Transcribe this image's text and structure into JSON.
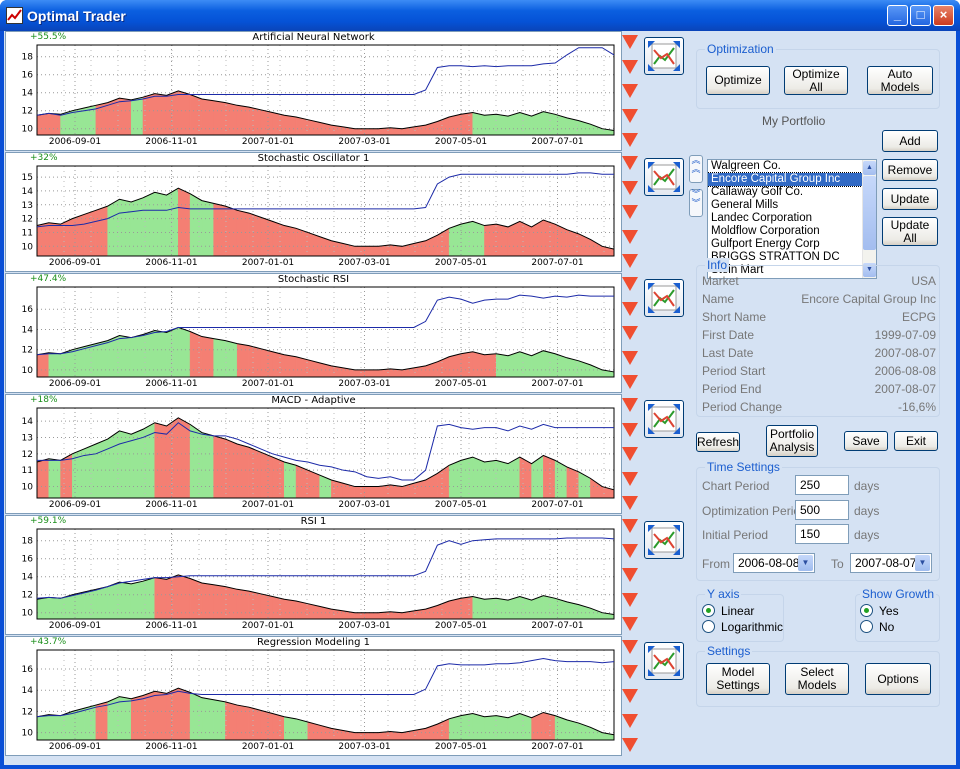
{
  "title": "Optimal Trader",
  "window_buttons": {
    "minimize": "_",
    "maximize": "□",
    "close": "×"
  },
  "colors": {
    "up": "#98e695",
    "down": "#f47f73",
    "line": "#000000",
    "model": "#1c2aa8",
    "grid": "#999999",
    "accent": "#1b5ecf"
  },
  "x_ticks": [
    "2006-09-01",
    "2006-11-01",
    "2007-01-01",
    "2007-03-01",
    "2007-05-01",
    "2007-07-01"
  ],
  "charts": [
    {
      "name": "Artificial Neural Network",
      "growth": "+55.5%",
      "yticks": [
        10,
        12,
        14,
        16,
        18
      ],
      "ylim": [
        9.3,
        19.3
      ],
      "price": [
        11.5,
        11.7,
        11.6,
        12.0,
        12.3,
        12.6,
        12.9,
        13.4,
        13.2,
        13.5,
        13.9,
        13.7,
        14.2,
        13.8,
        13.3,
        13.1,
        12.9,
        12.6,
        12.4,
        12.1,
        11.8,
        11.5,
        11.3,
        11.0,
        10.7,
        10.4,
        10.2,
        10.0,
        10.0,
        10.0,
        10.1,
        10.0,
        10.2,
        10.4,
        10.8,
        11.3,
        11.6,
        11.8,
        11.5,
        11.6,
        11.4,
        11.8,
        11.4,
        11.9,
        11.6,
        11.2,
        10.9,
        10.5,
        10.0,
        9.8
      ],
      "model": [
        11.5,
        11.7,
        11.5,
        11.8,
        12.0,
        12.2,
        12.6,
        13.0,
        13.1,
        13.3,
        13.6,
        13.6,
        13.8,
        13.8,
        13.8,
        13.8,
        13.8,
        13.8,
        13.8,
        13.8,
        13.8,
        13.8,
        13.8,
        13.8,
        13.8,
        13.8,
        13.8,
        13.8,
        13.8,
        13.8,
        13.8,
        13.8,
        13.8,
        14.3,
        16.8,
        17.0,
        17.0,
        16.9,
        17.0,
        16.9,
        17.0,
        17.0,
        17.0,
        17.2,
        17.3,
        18.2,
        19.0,
        19.0,
        19.0,
        18.2
      ],
      "regime": "DDUUUDDDUDDDDDDDDDDDDDDDDDDDDDDDDDDDDUUUUUUUUUUUUU"
    },
    {
      "name": "Stochastic Oscillator 1",
      "growth": "+32%",
      "yticks": [
        10,
        11,
        12,
        13,
        14,
        15
      ],
      "ylim": [
        9.3,
        15.8
      ],
      "price": [
        11.5,
        11.7,
        11.6,
        12.0,
        12.3,
        12.6,
        12.9,
        13.4,
        13.2,
        13.5,
        13.9,
        13.7,
        14.2,
        13.8,
        13.3,
        13.1,
        12.9,
        12.6,
        12.4,
        12.1,
        11.8,
        11.5,
        11.3,
        11.0,
        10.7,
        10.4,
        10.2,
        10.0,
        10.0,
        10.0,
        10.1,
        10.0,
        10.2,
        10.4,
        10.8,
        11.3,
        11.6,
        11.8,
        11.5,
        11.6,
        11.4,
        11.8,
        11.4,
        11.9,
        11.6,
        11.2,
        10.9,
        10.5,
        10.0,
        9.8
      ],
      "model": [
        11.4,
        11.5,
        11.5,
        11.5,
        11.6,
        11.8,
        12.0,
        12.4,
        12.5,
        12.6,
        12.6,
        12.6,
        12.8,
        12.7,
        12.7,
        12.7,
        12.7,
        12.7,
        12.7,
        12.7,
        12.7,
        12.7,
        12.7,
        12.7,
        12.7,
        12.7,
        12.7,
        12.7,
        12.7,
        12.7,
        12.7,
        12.7,
        12.7,
        12.8,
        14.5,
        15.0,
        15.2,
        15.2,
        15.2,
        15.2,
        15.2,
        15.2,
        15.2,
        15.2,
        15.2,
        15.2,
        15.3,
        15.3,
        15.2,
        15.2
      ],
      "regime": "DDDDDDUUUUUUDUUDDDDDDDDDDDDDDDDDDDDUUUDDDDDDDDDDDD"
    },
    {
      "name": "Stochastic RSI",
      "growth": "+47.4%",
      "yticks": [
        10,
        12,
        14,
        16
      ],
      "ylim": [
        9.3,
        18.2
      ],
      "price": [
        11.5,
        11.7,
        11.6,
        12.0,
        12.3,
        12.6,
        12.9,
        13.4,
        13.2,
        13.5,
        13.9,
        13.7,
        14.2,
        13.8,
        13.3,
        13.1,
        12.9,
        12.6,
        12.4,
        12.1,
        11.8,
        11.5,
        11.3,
        11.0,
        10.7,
        10.4,
        10.2,
        10.0,
        10.0,
        10.0,
        10.1,
        10.0,
        10.2,
        10.4,
        10.8,
        11.3,
        11.6,
        11.8,
        11.5,
        11.6,
        11.4,
        11.8,
        11.4,
        11.9,
        11.6,
        11.2,
        10.9,
        10.5,
        10.0,
        9.8
      ],
      "model": [
        11.5,
        11.6,
        11.6,
        11.8,
        12.1,
        12.4,
        12.7,
        13.1,
        13.2,
        13.4,
        13.7,
        13.8,
        14.2,
        14.2,
        14.2,
        14.2,
        14.2,
        14.2,
        14.2,
        14.2,
        14.2,
        14.2,
        14.2,
        14.2,
        14.2,
        14.2,
        14.2,
        14.2,
        14.2,
        14.2,
        14.2,
        14.2,
        14.2,
        14.8,
        16.9,
        17.2,
        17.0,
        16.6,
        16.9,
        17.0,
        17.0,
        17.4,
        17.3,
        17.1,
        17.3,
        17.2,
        17.4,
        17.3,
        17.3,
        17.3
      ],
      "regime": "DUUUUUUUUUUUUDDUUDDDDDDDDDDDDDDDDDDDDDDUUUUUUUUUUD"
    },
    {
      "name": "MACD - Adaptive",
      "growth": "+18%",
      "yticks": [
        10,
        11,
        12,
        13,
        14
      ],
      "ylim": [
        9.3,
        14.8
      ],
      "price": [
        11.5,
        11.7,
        11.6,
        12.0,
        12.3,
        12.6,
        12.9,
        13.4,
        13.2,
        13.5,
        13.9,
        13.7,
        14.2,
        13.8,
        13.3,
        13.1,
        12.9,
        12.6,
        12.4,
        12.1,
        11.8,
        11.5,
        11.3,
        11.0,
        10.7,
        10.4,
        10.2,
        10.0,
        10.0,
        10.0,
        10.1,
        10.0,
        10.2,
        10.4,
        10.8,
        11.3,
        11.6,
        11.8,
        11.5,
        11.6,
        11.4,
        11.8,
        11.4,
        11.9,
        11.6,
        11.2,
        10.9,
        10.5,
        10.0,
        9.8
      ],
      "model": [
        11.6,
        11.6,
        11.6,
        11.7,
        11.9,
        12.0,
        12.3,
        12.6,
        12.8,
        13.0,
        13.3,
        13.2,
        13.9,
        13.4,
        13.2,
        13.1,
        13.1,
        12.9,
        12.6,
        12.3,
        12.0,
        11.8,
        11.6,
        11.5,
        11.3,
        11.2,
        11.0,
        10.9,
        10.6,
        10.5,
        10.6,
        10.4,
        10.4,
        11.0,
        13.7,
        13.8,
        13.6,
        13.5,
        13.6,
        13.6,
        13.4,
        13.7,
        13.5,
        13.8,
        13.6,
        13.6,
        13.6,
        13.6,
        13.6,
        13.6
      ],
      "regime": "DUDUUUUUUUDDDUUDDDDDDUDDUDDDDDDDDDDUUUUUUDUDUDUDDD"
    },
    {
      "name": "RSI 1",
      "growth": "+59.1%",
      "yticks": [
        10,
        12,
        14,
        16,
        18
      ],
      "ylim": [
        9.3,
        19.3
      ],
      "price": [
        11.5,
        11.7,
        11.6,
        12.0,
        12.3,
        12.6,
        12.9,
        13.4,
        13.2,
        13.5,
        13.9,
        13.7,
        14.2,
        13.8,
        13.3,
        13.1,
        12.9,
        12.6,
        12.4,
        12.1,
        11.8,
        11.5,
        11.3,
        11.0,
        10.7,
        10.4,
        10.2,
        10.0,
        10.0,
        10.0,
        10.1,
        10.0,
        10.2,
        10.4,
        10.8,
        11.3,
        11.6,
        11.8,
        11.5,
        11.6,
        11.4,
        11.8,
        11.4,
        11.9,
        11.6,
        11.2,
        10.9,
        10.5,
        10.0,
        9.8
      ],
      "model": [
        11.6,
        11.7,
        11.6,
        11.9,
        12.2,
        12.5,
        12.9,
        13.3,
        13.5,
        13.7,
        13.9,
        13.9,
        14.0,
        14.1,
        14.1,
        14.1,
        14.1,
        14.1,
        14.1,
        14.1,
        14.1,
        14.1,
        14.1,
        14.1,
        14.1,
        14.1,
        14.1,
        14.1,
        14.1,
        14.1,
        14.1,
        14.1,
        14.1,
        14.6,
        17.5,
        18.0,
        17.6,
        18.0,
        18.1,
        18.2,
        18.2,
        18.2,
        18.2,
        18.2,
        18.2,
        18.3,
        18.3,
        18.3,
        18.3,
        18.2
      ],
      "regime": "UUUUUUUUUUDDDDDDDDDDDDDDDDDDDDDDDDDDDUUUUUUUUUUUUD"
    },
    {
      "name": "Regression Modeling 1",
      "growth": "+43.7%",
      "yticks": [
        10,
        12,
        14,
        16
      ],
      "ylim": [
        9.3,
        17.8
      ],
      "price": [
        11.5,
        11.7,
        11.6,
        12.0,
        12.3,
        12.6,
        12.9,
        13.4,
        13.2,
        13.5,
        13.9,
        13.7,
        14.2,
        13.8,
        13.3,
        13.1,
        12.9,
        12.6,
        12.4,
        12.1,
        11.8,
        11.5,
        11.3,
        11.0,
        10.7,
        10.4,
        10.2,
        10.0,
        10.0,
        10.0,
        10.1,
        10.0,
        10.2,
        10.4,
        10.8,
        11.3,
        11.6,
        11.8,
        11.5,
        11.6,
        11.4,
        11.8,
        11.4,
        11.9,
        11.6,
        11.2,
        10.9,
        10.5,
        10.0,
        9.8
      ],
      "model": [
        11.5,
        11.6,
        11.6,
        11.8,
        12.1,
        12.4,
        12.6,
        12.9,
        13.0,
        13.2,
        13.5,
        13.6,
        13.9,
        13.7,
        13.6,
        13.6,
        13.6,
        13.6,
        13.6,
        13.6,
        13.6,
        13.6,
        13.6,
        13.6,
        13.6,
        13.6,
        13.6,
        13.6,
        13.6,
        13.6,
        13.6,
        13.6,
        13.6,
        14.1,
        16.3,
        16.5,
        16.4,
        16.4,
        16.4,
        16.5,
        16.5,
        16.6,
        16.8,
        17.0,
        16.8,
        16.7,
        16.7,
        16.7,
        16.6,
        16.7
      ],
      "regime": "UUUUUDUUDDDDDUUUDDDDDUUDDDDDDDDDDDDUUUUUUUDDUUUUUD"
    }
  ],
  "optimization": {
    "title": "Optimization",
    "optimize": "Optimize",
    "optimize_all": "Optimize All",
    "auto_models": "Auto Models"
  },
  "portfolio": {
    "title": "My Portfolio",
    "items": [
      "Walgreen Co.",
      "Encore Capital Group Inc",
      "Callaway Golf Co.",
      "General Mills",
      "Landec Corporation",
      "Moldflow Corporation",
      "Gulfport Energy Corp",
      "BRIGGS STRATTON DC",
      "Stein Mart"
    ],
    "selected": 1,
    "add": "Add",
    "remove": "Remove",
    "update": "Update",
    "update_all": "Update All"
  },
  "info": {
    "title": "Info",
    "rows": [
      {
        "label": "Market",
        "value": "USA"
      },
      {
        "label": "Name",
        "value": "Encore Capital Group Inc"
      },
      {
        "label": "Short Name",
        "value": "ECPG"
      },
      {
        "label": "First Date",
        "value": "1999-07-09"
      },
      {
        "label": "Last Date",
        "value": "2007-08-07"
      },
      {
        "label": "Period Start",
        "value": "2006-08-08"
      },
      {
        "label": "Period End",
        "value": "2007-08-07"
      },
      {
        "label": "Period Change",
        "value": "-16,6%"
      }
    ]
  },
  "actions": {
    "refresh": "Refresh",
    "portfolio_analysis": "Portfolio Analysis",
    "save": "Save",
    "exit": "Exit"
  },
  "time_settings": {
    "title": "Time Settings",
    "chart_period_label": "Chart Period",
    "chart_period": "250",
    "optimization_period_label": "Optimization Period",
    "optimization_period": "500",
    "initial_period_label": "Initial Period",
    "initial_period": "150",
    "unit": "days",
    "from_label": "From",
    "from": "2006-08-08",
    "to_label": "To",
    "to": "2007-08-07"
  },
  "y_axis": {
    "title": "Y axis",
    "options": [
      "Linear",
      "Logarithmic"
    ],
    "selected": 0
  },
  "show_growth": {
    "title": "Show Growth",
    "options": [
      "Yes",
      "No"
    ],
    "selected": 0
  },
  "settings": {
    "title": "Settings",
    "model_settings": "Model Settings",
    "select_models": "Select Models",
    "options": "Options"
  }
}
